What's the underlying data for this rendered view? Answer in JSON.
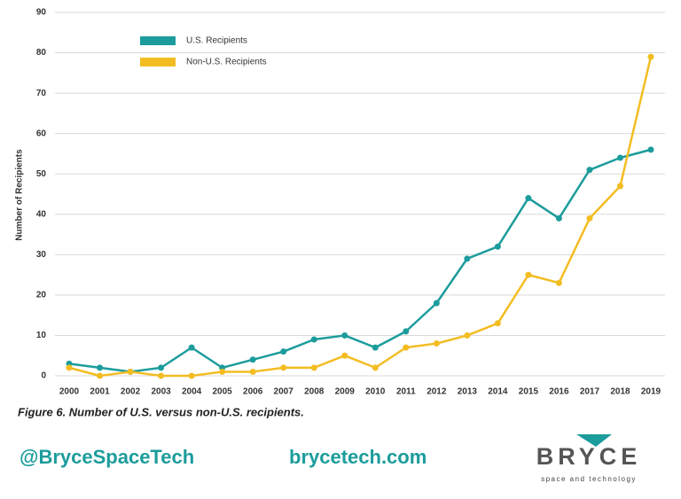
{
  "chart_data": {
    "type": "line",
    "y_label": "Number of Recipients",
    "caption": "Figure 6. Number of U.S. versus non-U.S. recipients.",
    "categories": [
      "2000",
      "2001",
      "2002",
      "2003",
      "2004",
      "2005",
      "2006",
      "2007",
      "2008",
      "2009",
      "2010",
      "2011",
      "2012",
      "2013",
      "2014",
      "2015",
      "2016",
      "2017",
      "2018",
      "2019"
    ],
    "series": [
      {
        "name": "U.S. Recipients",
        "color": "#1c9c9c",
        "values": [
          3,
          2,
          1,
          2,
          7,
          2,
          4,
          6,
          9,
          10,
          7,
          11,
          18,
          29,
          32,
          44,
          39,
          51,
          54,
          56
        ]
      },
      {
        "name": "Non-U.S. Recipients",
        "color": "#f3bd22",
        "values": [
          2,
          0,
          1,
          0,
          0,
          1,
          1,
          2,
          2,
          5,
          2,
          7,
          8,
          10,
          13,
          25,
          23,
          39,
          47,
          79
        ]
      }
    ],
    "ylim": [
      0,
      90
    ],
    "yticks": [
      0,
      10,
      20,
      30,
      40,
      50,
      60,
      70,
      80,
      90
    ],
    "grid": true,
    "legend": "upper left"
  },
  "footer": {
    "twitter": "@BryceSpaceTech",
    "website": "brycetech.com",
    "logo": "BRYCE",
    "tagline": "space and technology"
  }
}
